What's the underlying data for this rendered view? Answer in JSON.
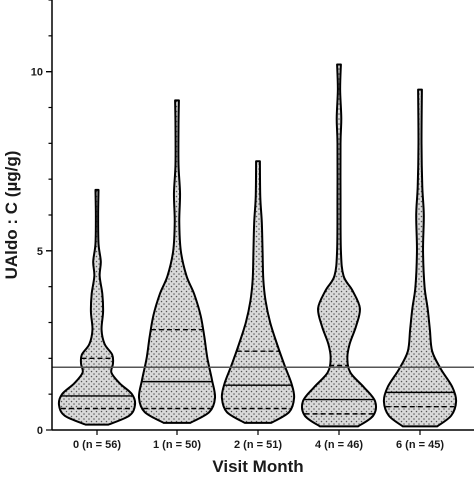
{
  "chart_data": {
    "type": "violin",
    "xlabel": "Visit Month",
    "ylabel": "UAldo : C (µg/g)",
    "ylim": [
      0,
      12
    ],
    "yticks": [
      0,
      5,
      10
    ],
    "reference_line": 1.75,
    "grid": false,
    "categories": [
      "0 (n = 56)",
      "1 (n = 50)",
      "2 (n = 51)",
      "4 (n = 46)",
      "6 (n = 45)"
    ],
    "violins": [
      {
        "category": "0 (n = 56)",
        "min": 0.15,
        "max": 6.7,
        "q1": 0.6,
        "median": 0.95,
        "q3": 2.0,
        "density": [
          [
            0.15,
            0.3
          ],
          [
            0.4,
            0.85
          ],
          [
            0.7,
            1.0
          ],
          [
            1.0,
            0.92
          ],
          [
            1.3,
            0.6
          ],
          [
            1.6,
            0.38
          ],
          [
            1.85,
            0.42
          ],
          [
            2.1,
            0.4
          ],
          [
            2.4,
            0.2
          ],
          [
            2.8,
            0.12
          ],
          [
            3.3,
            0.16
          ],
          [
            3.8,
            0.14
          ],
          [
            4.3,
            0.07
          ],
          [
            4.7,
            0.1
          ],
          [
            5.2,
            0.04
          ],
          [
            6.0,
            0.03
          ],
          [
            6.7,
            0.04
          ]
        ]
      },
      {
        "category": "1 (n = 50)",
        "min": 0.2,
        "max": 9.2,
        "q1": 0.6,
        "median": 1.35,
        "q3": 2.8,
        "density": [
          [
            0.2,
            0.35
          ],
          [
            0.5,
            0.85
          ],
          [
            0.9,
            1.0
          ],
          [
            1.4,
            0.92
          ],
          [
            2.0,
            0.8
          ],
          [
            2.6,
            0.72
          ],
          [
            3.2,
            0.62
          ],
          [
            3.8,
            0.45
          ],
          [
            4.3,
            0.25
          ],
          [
            5.0,
            0.1
          ],
          [
            5.8,
            0.06
          ],
          [
            6.6,
            0.08
          ],
          [
            7.4,
            0.04
          ],
          [
            8.5,
            0.04
          ],
          [
            9.2,
            0.05
          ]
        ]
      },
      {
        "category": "2 (n = 51)",
        "min": 0.2,
        "max": 7.5,
        "q1": 0.6,
        "median": 1.25,
        "q3": 2.2,
        "density": [
          [
            0.2,
            0.35
          ],
          [
            0.5,
            0.82
          ],
          [
            0.9,
            0.95
          ],
          [
            1.3,
            0.88
          ],
          [
            1.8,
            0.7
          ],
          [
            2.4,
            0.5
          ],
          [
            3.0,
            0.32
          ],
          [
            3.6,
            0.2
          ],
          [
            4.2,
            0.14
          ],
          [
            5.0,
            0.12
          ],
          [
            5.8,
            0.1
          ],
          [
            6.5,
            0.06
          ],
          [
            7.5,
            0.05
          ]
        ]
      },
      {
        "category": "4 (n = 46)",
        "min": 0.1,
        "max": 10.2,
        "q1": 0.45,
        "median": 0.85,
        "q3": 1.8,
        "density": [
          [
            0.1,
            0.5
          ],
          [
            0.4,
            0.9
          ],
          [
            0.8,
            0.95
          ],
          [
            1.2,
            0.65
          ],
          [
            1.6,
            0.3
          ],
          [
            2.0,
            0.22
          ],
          [
            2.4,
            0.28
          ],
          [
            2.9,
            0.45
          ],
          [
            3.4,
            0.55
          ],
          [
            3.9,
            0.35
          ],
          [
            4.3,
            0.12
          ],
          [
            5.0,
            0.05
          ],
          [
            6.5,
            0.04
          ],
          [
            8.0,
            0.04
          ],
          [
            8.7,
            0.06
          ],
          [
            9.5,
            0.03
          ],
          [
            10.2,
            0.05
          ]
        ]
      },
      {
        "category": "6 (n = 45)",
        "min": 0.1,
        "max": 9.5,
        "q1": 0.65,
        "median": 1.05,
        "q3": 1.75,
        "density": [
          [
            0.1,
            0.45
          ],
          [
            0.4,
            0.82
          ],
          [
            0.8,
            0.95
          ],
          [
            1.2,
            0.85
          ],
          [
            1.7,
            0.55
          ],
          [
            2.2,
            0.32
          ],
          [
            2.8,
            0.26
          ],
          [
            3.4,
            0.2
          ],
          [
            4.0,
            0.12
          ],
          [
            5.0,
            0.08
          ],
          [
            6.0,
            0.1
          ],
          [
            6.8,
            0.06
          ],
          [
            8.0,
            0.04
          ],
          [
            9.5,
            0.05
          ]
        ]
      }
    ]
  },
  "colors": {
    "fill": "#d9d9d9",
    "stipple": "#555555",
    "outline": "#000000",
    "axis": "#000000",
    "reference_line": "#555555"
  }
}
